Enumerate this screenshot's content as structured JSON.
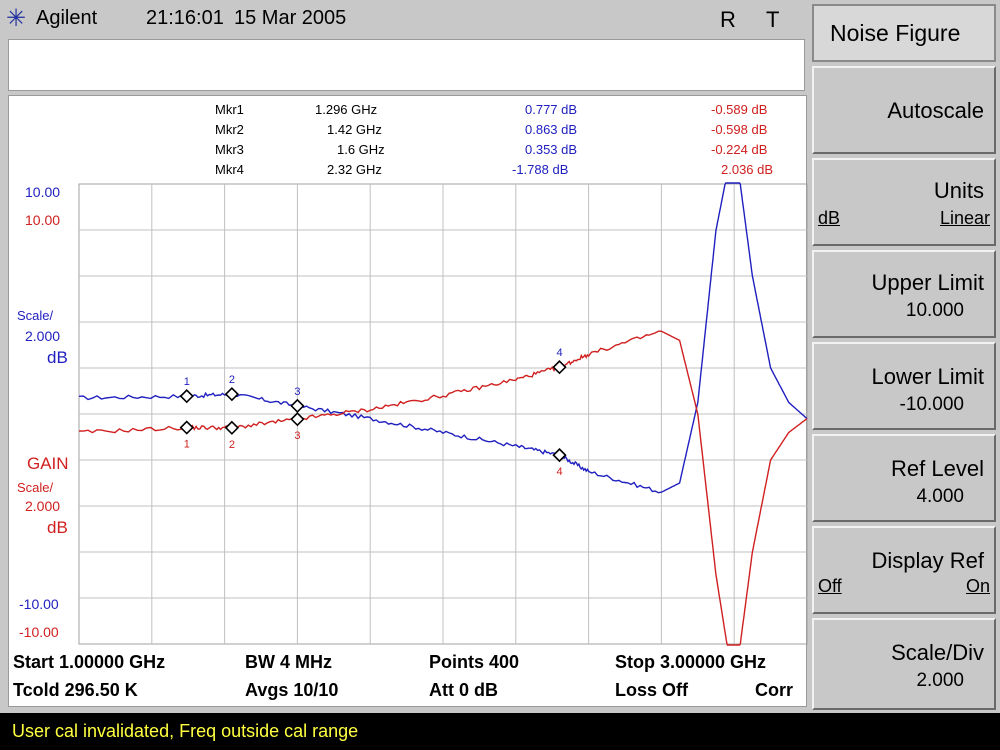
{
  "header": {
    "brand": "Agilent",
    "time": "21:16:01",
    "date": "15 Mar 2005",
    "indicator_r": "R",
    "indicator_t": "T"
  },
  "markers": [
    {
      "name": "Mkr1",
      "freq": "1.296 GHz",
      "nf": "0.777 dB",
      "gain": "-0.589 dB"
    },
    {
      "name": "Mkr2",
      "freq": "1.42 GHz",
      "nf": "0.863 dB",
      "gain": "-0.598 dB"
    },
    {
      "name": "Mkr3",
      "freq": "1.6 GHz",
      "nf": "0.353 dB",
      "gain": "-0.224 dB"
    },
    {
      "name": "Mkr4",
      "freq": "2.32 GHz",
      "nf": "-1.788 dB",
      "gain": "2.036 dB"
    }
  ],
  "axis": {
    "nf_top": "10.00",
    "gain_top": "10.00",
    "nf_scale_label": "Scale/",
    "nf_scale_value": "2.000",
    "nf_unit": "dB",
    "gain_name": "GAIN",
    "gain_scale_label": "Scale/",
    "gain_scale_value": "2.000",
    "gain_unit": "dB",
    "nf_bottom": "-10.00",
    "gain_bottom": "-10.00"
  },
  "footer": {
    "start": "Start 1.00000 GHz",
    "bw": "BW 4 MHz",
    "points": "Points 400",
    "stop": "Stop 3.00000 GHz",
    "tcold": "Tcold 296.50 K",
    "avgs": "Avgs 10/10",
    "att": "Att 0 dB",
    "loss": "Loss Off",
    "corr": "Corr"
  },
  "status_message": "User cal invalidated, Freq outside cal range",
  "softkeys": {
    "title": "Noise Figure",
    "autoscale": "Autoscale",
    "units": {
      "label": "Units",
      "opt1": "dB",
      "opt2": "Linear"
    },
    "upper_limit": {
      "label": "Upper Limit",
      "value": "10.000"
    },
    "lower_limit": {
      "label": "Lower Limit",
      "value": "-10.000"
    },
    "ref_level": {
      "label": "Ref Level",
      "value": "4.000"
    },
    "display_ref": {
      "label": "Display Ref",
      "opt1": "Off",
      "opt2": "On"
    },
    "scale_div": {
      "label": "Scale/Div",
      "value": "2.000"
    }
  },
  "colors": {
    "nf_trace": "#2020c0",
    "gain_trace": "#d02020",
    "status_text": "#ffff40"
  },
  "chart_data": {
    "type": "line",
    "x_range": [
      1.0,
      3.0
    ],
    "x_unit": "GHz",
    "ylim": [
      -10,
      10
    ],
    "grid": true,
    "series": [
      {
        "name": "Noise Figure",
        "unit": "dB",
        "x": [
          1.0,
          1.296,
          1.42,
          1.6,
          1.8,
          2.0,
          2.2,
          2.32,
          2.4,
          2.6,
          2.65,
          2.7,
          2.75,
          2.8,
          2.85,
          2.9,
          2.95,
          3.0
        ],
        "y": [
          0.7,
          0.777,
          0.863,
          0.353,
          -0.2,
          -0.8,
          -1.4,
          -1.788,
          -2.5,
          -3.4,
          -3.0,
          0.5,
          8.0,
          12.0,
          6.0,
          2.0,
          0.5,
          -0.2
        ]
      },
      {
        "name": "GAIN",
        "unit": "dB",
        "x": [
          1.0,
          1.296,
          1.42,
          1.6,
          1.8,
          2.0,
          2.2,
          2.32,
          2.4,
          2.6,
          2.65,
          2.7,
          2.75,
          2.8,
          2.85,
          2.9,
          2.95,
          3.0
        ],
        "y": [
          -0.8,
          -0.589,
          -0.598,
          -0.224,
          0.2,
          0.8,
          1.5,
          2.036,
          2.6,
          3.6,
          3.2,
          0.0,
          -7.0,
          -12.0,
          -6.0,
          -2.0,
          -0.8,
          -0.2
        ]
      }
    ],
    "marker_points": [
      {
        "label": "1",
        "x": 1.296,
        "nf": 0.777,
        "gain": -0.589
      },
      {
        "label": "2",
        "x": 1.42,
        "nf": 0.863,
        "gain": -0.598
      },
      {
        "label": "3",
        "x": 1.6,
        "nf": 0.353,
        "gain": -0.224
      },
      {
        "label": "4",
        "x": 2.32,
        "nf": -1.788,
        "gain": 2.036
      }
    ]
  }
}
